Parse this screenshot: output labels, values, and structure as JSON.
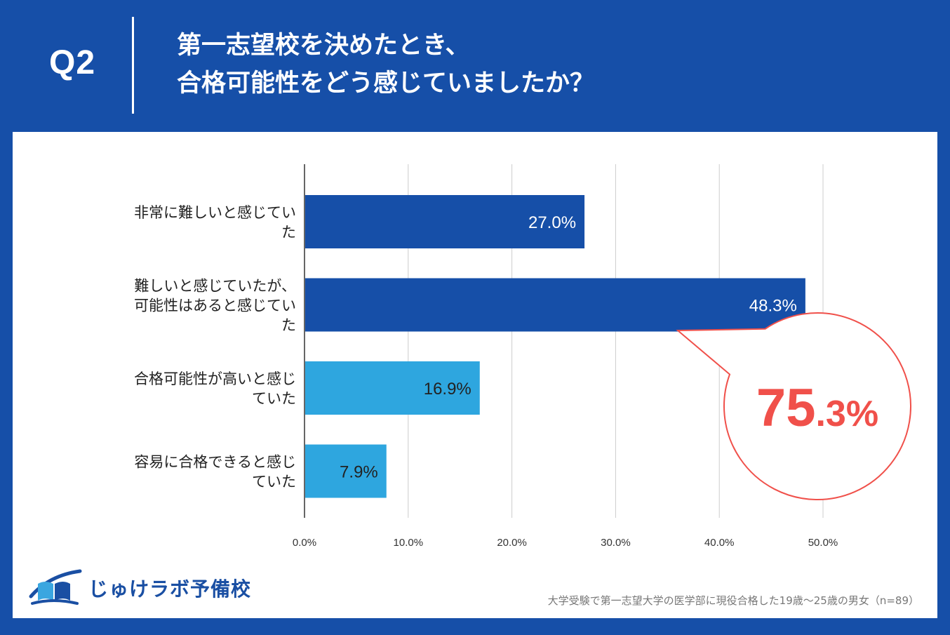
{
  "header": {
    "q_label": "Q2",
    "title_line1": "第一志望校を決めたとき、",
    "title_line2": "合格可能性をどう感じていましたか？"
  },
  "chart_data": {
    "type": "bar",
    "orientation": "horizontal",
    "categories": [
      [
        "非常に難しいと感じてい",
        "た"
      ],
      [
        "難しいと感じていたが、",
        "可能性はあると感じてい",
        "た"
      ],
      [
        "合格可能性が高いと感じ",
        "ていた"
      ],
      [
        "容易に合格できると感じ",
        "ていた"
      ]
    ],
    "values": [
      27.0,
      48.3,
      16.9,
      7.9
    ],
    "value_labels": [
      "27.0%",
      "48.3%",
      "16.9%",
      "7.9%"
    ],
    "bar_colors": [
      "#164fa8",
      "#164fa8",
      "#2ea6df",
      "#2ea6df"
    ],
    "label_colors": [
      "#ffffff",
      "#ffffff",
      "#222222",
      "#222222"
    ],
    "xlim": [
      0,
      50
    ],
    "xticks": [
      0,
      10,
      20,
      30,
      40,
      50
    ],
    "xtick_labels": [
      "0.0%",
      "10.0%",
      "20.0%",
      "30.0%",
      "40.0%",
      "50.0%"
    ],
    "grid": true,
    "callout": {
      "big": "75",
      "small": ".3%",
      "color": "#f0504a"
    }
  },
  "logo": {
    "text": "じゅけラボ予備校",
    "icon": "open-book-icon",
    "color": "#1a4fa3"
  },
  "footnote": "大学受験で第一志望大学の医学部に現役合格した19歳〜25歳の男女（n=89）"
}
